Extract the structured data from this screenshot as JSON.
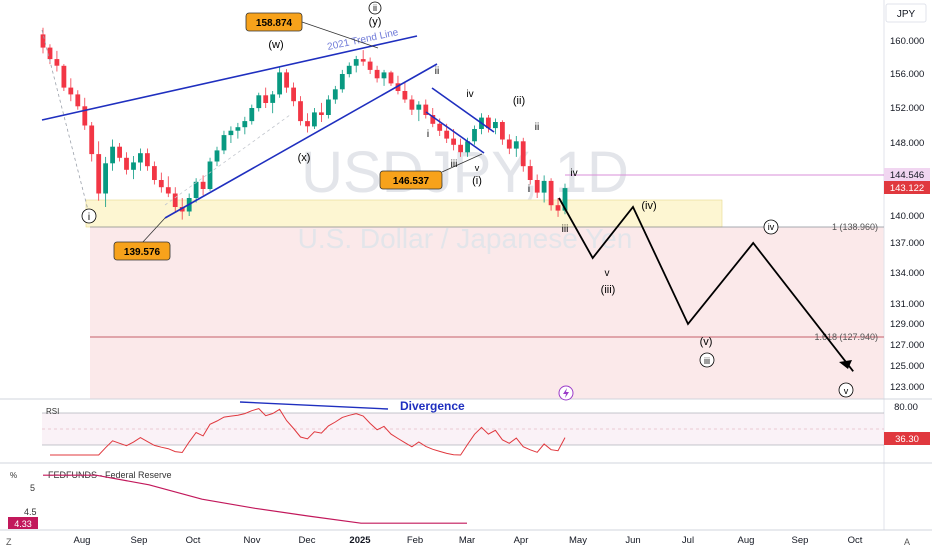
{
  "chart_data": {
    "type": "candlestick",
    "symbol": "USDJPY, 1D",
    "description": "U.S. Dollar / Japanese Yen",
    "currency": "JPY",
    "y_axis_ticks": [
      "160.000",
      "156.000",
      "152.000",
      "148.000",
      "144.000",
      "140.000",
      "137.000",
      "134.000",
      "131.000",
      "129.000",
      "127.000",
      "125.000",
      "123.000"
    ],
    "x_axis_ticks": [
      "Aug",
      "Sep",
      "Oct",
      "Nov",
      "Dec",
      "2025",
      "Feb",
      "Mar",
      "Apr",
      "May",
      "Jun",
      "Jul",
      "Aug",
      "Sep",
      "Oct"
    ],
    "price_labels": {
      "alert": "144.546",
      "last": "143.122",
      "rsi_last": "36.30",
      "fed_last": "4.33"
    },
    "swing_labels": {
      "high": "158.874",
      "low_aug": "139.576",
      "low_mar": "146.537"
    },
    "fib_levels": [
      {
        "label": "1 (138.960)",
        "value": 138.96
      },
      {
        "label": "1.618 (127.940)",
        "value": 127.94
      }
    ],
    "trend_line_label": "2021 Trend Line",
    "wave_labels": [
      "(w)",
      "(x)",
      "(y)",
      "ii",
      "i",
      "i",
      "iii",
      "iv",
      "v",
      "(i)",
      "(ii)",
      "ii",
      "i",
      "iii",
      "iv",
      "(iii)",
      "v",
      "(iv)",
      "(v)",
      "iii",
      "iv",
      "v"
    ],
    "projection_path": [
      {
        "date": "2025-04-21",
        "value": 142.0
      },
      {
        "date": "2025-05-09",
        "value": 135.5
      },
      {
        "date": "2025-06-01",
        "value": 141.0
      },
      {
        "date": "2025-07-01",
        "value": 129.0
      },
      {
        "date": "2025-08-05",
        "value": 137.0
      },
      {
        "date": "2025-09-30",
        "value": 124.5
      }
    ],
    "rsi": {
      "label": "RSI",
      "levels": [
        "80.00"
      ],
      "annotation": "Divergence"
    },
    "fedfunds": {
      "label": "FEDFUNDS · Federal Reserve",
      "unit": "%",
      "ticks": [
        "5",
        "4.5"
      ],
      "values": [
        5.33,
        5.33,
        5.13,
        4.83,
        4.64,
        4.48,
        4.33,
        4.33,
        4.33
      ]
    },
    "candles": [
      [
        160.8,
        161.6,
        158.5,
        159.2
      ],
      [
        159.2,
        159.6,
        157.2,
        157.8
      ],
      [
        157.8,
        158.8,
        156.3,
        157.0
      ],
      [
        157.0,
        157.2,
        154.0,
        154.4
      ],
      [
        154.4,
        155.5,
        152.8,
        153.6
      ],
      [
        153.6,
        154.1,
        151.8,
        152.2
      ],
      [
        152.2,
        153.2,
        149.5,
        150.0
      ],
      [
        150.0,
        150.4,
        146.0,
        146.8
      ],
      [
        146.8,
        148.2,
        141.7,
        142.5
      ],
      [
        142.5,
        146.5,
        141.0,
        145.8
      ],
      [
        145.8,
        148.4,
        145.0,
        147.6
      ],
      [
        147.6,
        148.0,
        146.0,
        146.4
      ],
      [
        146.4,
        147.0,
        144.6,
        145.1
      ],
      [
        145.1,
        146.6,
        144.1,
        145.9
      ],
      [
        145.9,
        147.4,
        145.0,
        146.9
      ],
      [
        146.9,
        147.4,
        145.0,
        145.5
      ],
      [
        145.5,
        146.0,
        143.5,
        144.0
      ],
      [
        144.0,
        144.8,
        142.6,
        143.2
      ],
      [
        143.2,
        144.4,
        142.1,
        142.5
      ],
      [
        142.5,
        143.2,
        140.5,
        141.0
      ],
      [
        141.0,
        142.0,
        139.6,
        140.5
      ],
      [
        140.5,
        142.5,
        140.0,
        142.0
      ],
      [
        142.0,
        144.2,
        141.5,
        143.8
      ],
      [
        143.8,
        144.5,
        142.3,
        143.0
      ],
      [
        143.0,
        146.4,
        142.8,
        146.0
      ],
      [
        146.0,
        147.6,
        145.5,
        147.2
      ],
      [
        147.2,
        149.4,
        146.8,
        148.9
      ],
      [
        148.9,
        149.9,
        148.0,
        149.4
      ],
      [
        149.4,
        150.3,
        148.5,
        149.8
      ],
      [
        149.8,
        151.0,
        149.0,
        150.5
      ],
      [
        150.5,
        152.4,
        150.1,
        152.0
      ],
      [
        152.0,
        153.8,
        151.6,
        153.5
      ],
      [
        153.5,
        154.4,
        152.0,
        152.6
      ],
      [
        152.6,
        154.0,
        151.4,
        153.6
      ],
      [
        153.6,
        156.8,
        153.2,
        156.2
      ],
      [
        156.2,
        156.6,
        153.8,
        154.4
      ],
      [
        154.4,
        155.0,
        152.2,
        152.8
      ],
      [
        152.8,
        153.4,
        150.0,
        150.5
      ],
      [
        150.5,
        151.4,
        149.2,
        149.9
      ],
      [
        149.9,
        152.0,
        149.6,
        151.5
      ],
      [
        151.5,
        152.6,
        150.4,
        151.2
      ],
      [
        151.2,
        153.5,
        150.8,
        153.0
      ],
      [
        153.0,
        154.6,
        152.5,
        154.2
      ],
      [
        154.2,
        156.5,
        153.8,
        156.0
      ],
      [
        156.0,
        157.4,
        155.6,
        157.0
      ],
      [
        157.0,
        158.2,
        156.2,
        157.8
      ],
      [
        157.8,
        158.9,
        157.0,
        157.5
      ],
      [
        157.5,
        158.0,
        156.0,
        156.5
      ],
      [
        156.5,
        157.0,
        155.0,
        155.5
      ],
      [
        155.5,
        156.5,
        154.6,
        156.2
      ],
      [
        156.2,
        156.4,
        154.6,
        154.9
      ],
      [
        154.9,
        155.8,
        153.6,
        154.0
      ],
      [
        154.0,
        155.0,
        152.6,
        153.0
      ],
      [
        153.0,
        153.5,
        151.2,
        151.8
      ],
      [
        151.8,
        152.8,
        150.5,
        152.4
      ],
      [
        152.4,
        153.0,
        150.8,
        151.2
      ],
      [
        151.2,
        152.0,
        149.8,
        150.2
      ],
      [
        150.2,
        150.8,
        148.8,
        149.4
      ],
      [
        149.4,
        150.2,
        148.0,
        148.5
      ],
      [
        148.5,
        149.6,
        147.2,
        147.8
      ],
      [
        147.8,
        148.5,
        146.5,
        147.0
      ],
      [
        147.0,
        148.6,
        146.5,
        148.2
      ],
      [
        148.2,
        150.0,
        147.8,
        149.6
      ],
      [
        149.6,
        151.4,
        149.0,
        150.9
      ],
      [
        150.9,
        151.2,
        149.2,
        149.7
      ],
      [
        149.7,
        150.8,
        149.0,
        150.4
      ],
      [
        150.4,
        150.6,
        147.8,
        148.4
      ],
      [
        148.4,
        149.0,
        146.8,
        147.4
      ],
      [
        147.4,
        148.8,
        146.5,
        148.2
      ],
      [
        148.2,
        148.6,
        144.9,
        145.5
      ],
      [
        145.5,
        146.2,
        143.5,
        144.0
      ],
      [
        144.0,
        144.6,
        142.0,
        142.6
      ],
      [
        142.6,
        144.5,
        141.5,
        143.9
      ],
      [
        143.9,
        144.2,
        140.6,
        141.2
      ],
      [
        141.2,
        142.0,
        139.9,
        140.6
      ],
      [
        140.6,
        143.6,
        140.2,
        143.1
      ]
    ]
  }
}
